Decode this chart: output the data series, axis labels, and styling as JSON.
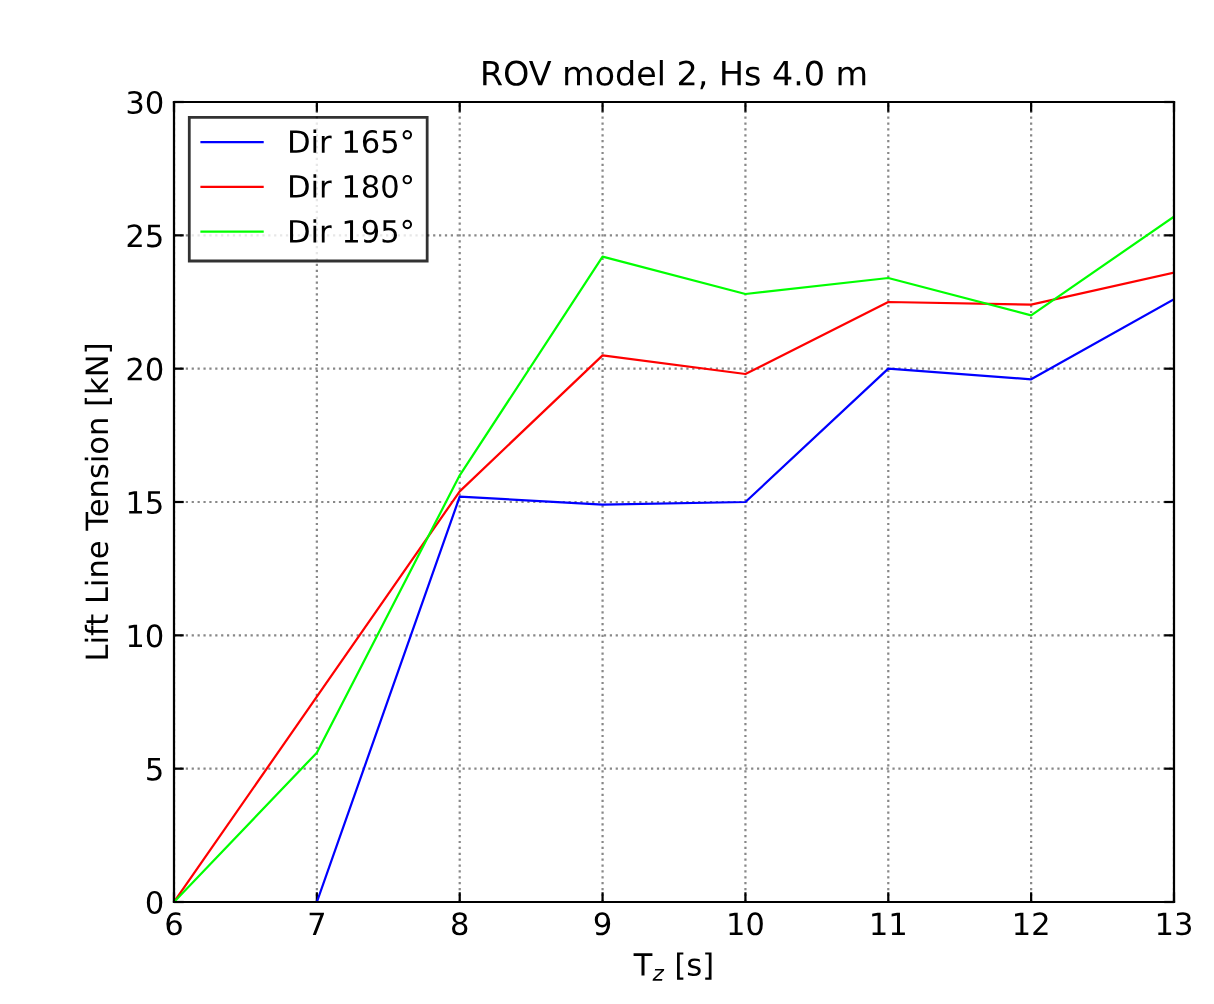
{
  "chart_data": {
    "type": "line",
    "title": "ROV model 2, Hs 4.0 m",
    "xlabel": "T$_{z}$ [s]",
    "ylabel": "Lift Line Tension [kN]",
    "x": [
      6,
      7,
      8,
      9,
      10,
      11,
      12,
      13
    ],
    "series": [
      {
        "name": "Dir 165°",
        "color": "#0000ff",
        "values": [
          0,
          0,
          15.2,
          14.9,
          15.0,
          20.0,
          19.6,
          22.6
        ]
      },
      {
        "name": "Dir 180°",
        "color": "#ff0000",
        "values": [
          0,
          7.7,
          15.4,
          20.5,
          19.8,
          22.5,
          22.4,
          23.6
        ]
      },
      {
        "name": "Dir 195°",
        "color": "#00ff00",
        "values": [
          0,
          5.6,
          16.0,
          24.2,
          22.8,
          23.4,
          22.0,
          25.7
        ]
      }
    ],
    "xlim": [
      6,
      13
    ],
    "xticks": [
      6,
      7,
      8,
      9,
      10,
      11,
      12,
      13
    ],
    "ylim": [
      0,
      30
    ],
    "yticks": [
      0,
      5,
      10,
      15,
      20,
      25,
      30
    ],
    "grid": true,
    "legend": "top left",
    "line_style": "solid"
  }
}
